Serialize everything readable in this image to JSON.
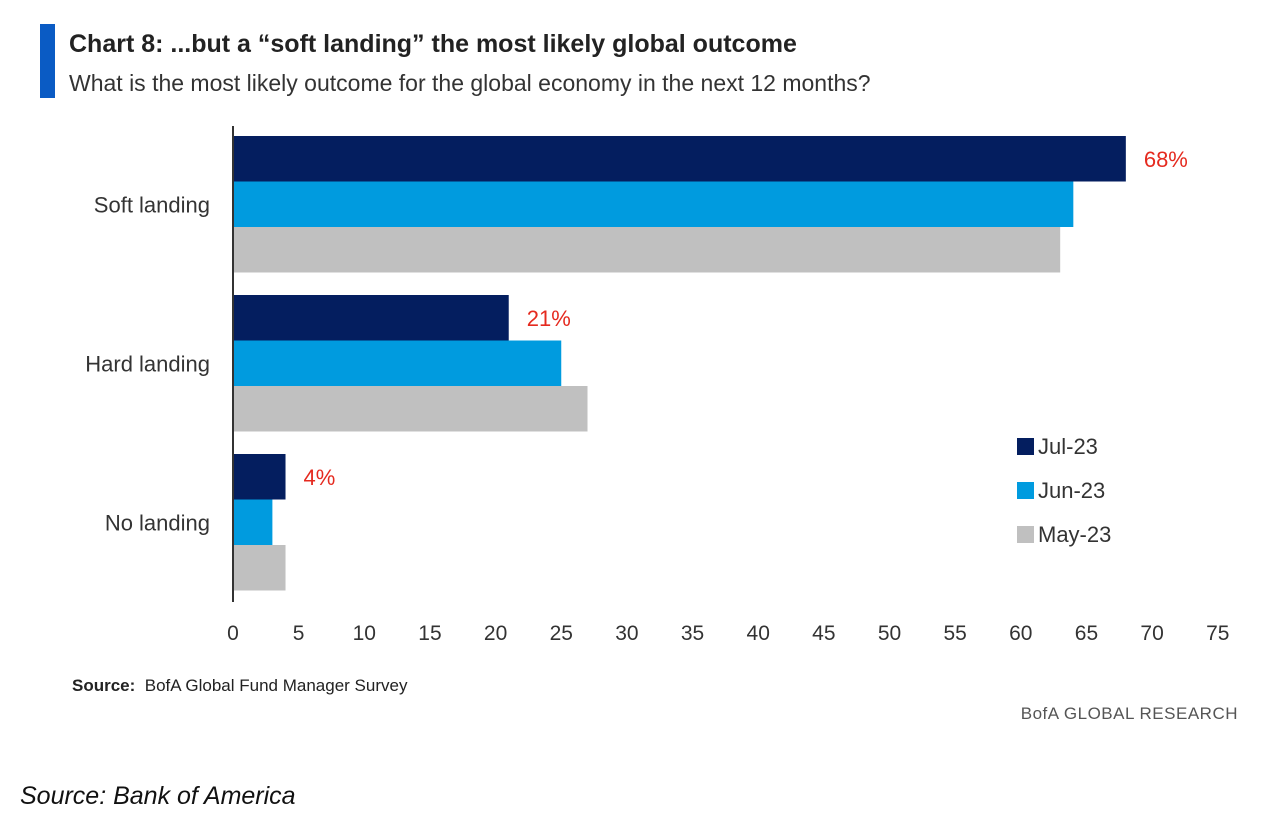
{
  "chart_data": {
    "type": "bar",
    "orientation": "horizontal",
    "title": "Chart 8: ...but a “soft landing” the most likely global outcome",
    "subtitle": "What is the most likely outcome for the global economy in the next 12 months?",
    "categories": [
      "Soft landing",
      "Hard landing",
      "No landing"
    ],
    "series": [
      {
        "name": "Jul-23",
        "color": "#041e5f",
        "values": [
          68,
          21,
          4
        ]
      },
      {
        "name": "Jun-23",
        "color": "#009bdf",
        "values": [
          64,
          25,
          3
        ]
      },
      {
        "name": "May-23",
        "color": "#c0c0c0",
        "values": [
          63,
          27,
          4
        ]
      }
    ],
    "data_labels": [
      "68%",
      "21%",
      "4%"
    ],
    "data_label_color": "#e52a1f",
    "xlim": [
      0,
      75
    ],
    "xticks": [
      0,
      5,
      10,
      15,
      20,
      25,
      30,
      35,
      40,
      45,
      50,
      55,
      60,
      65,
      70,
      75
    ],
    "xlabel": "",
    "ylabel": "",
    "grid": false,
    "legend_position": "right"
  },
  "source": {
    "label": "Source:",
    "text": "BofA Global Fund Manager Survey"
  },
  "brand": "BofA GLOBAL RESEARCH",
  "footnote": "Source: Bank of America"
}
